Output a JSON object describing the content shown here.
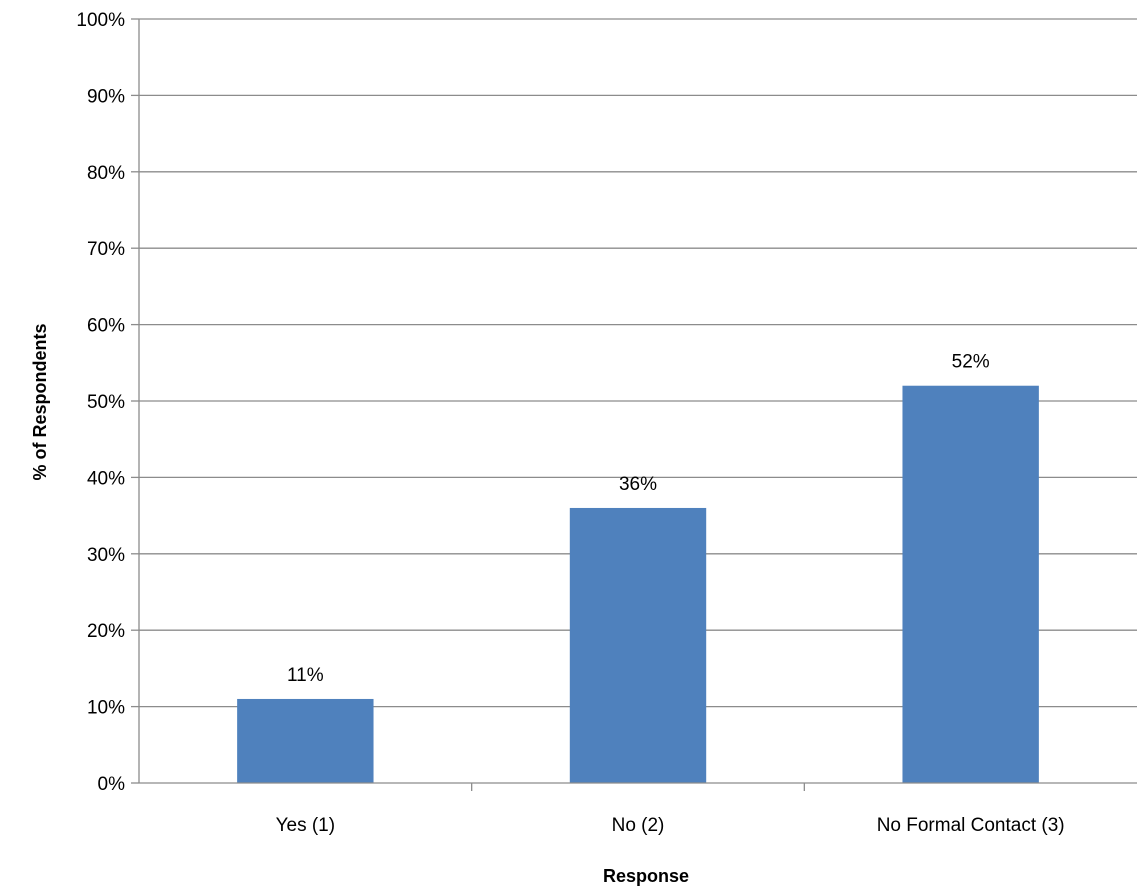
{
  "chart_data": {
    "type": "bar",
    "title": "",
    "xlabel": "Response",
    "ylabel": "% of Respondents",
    "categories": [
      "Yes (1)",
      "No (2)",
      "No Formal Contact (3)"
    ],
    "values": [
      11,
      36,
      52
    ],
    "value_labels": [
      "11%",
      "36%",
      "52%"
    ],
    "ylim": [
      0,
      100
    ],
    "yticks": [
      0,
      10,
      20,
      30,
      40,
      50,
      60,
      70,
      80,
      90,
      100
    ],
    "ytick_labels": [
      "0%",
      "10%",
      "20%",
      "30%",
      "40%",
      "50%",
      "60%",
      "70%",
      "80%",
      "90%",
      "100%"
    ],
    "grid": true,
    "legend": "none",
    "bar_color": "#4f81bd"
  }
}
